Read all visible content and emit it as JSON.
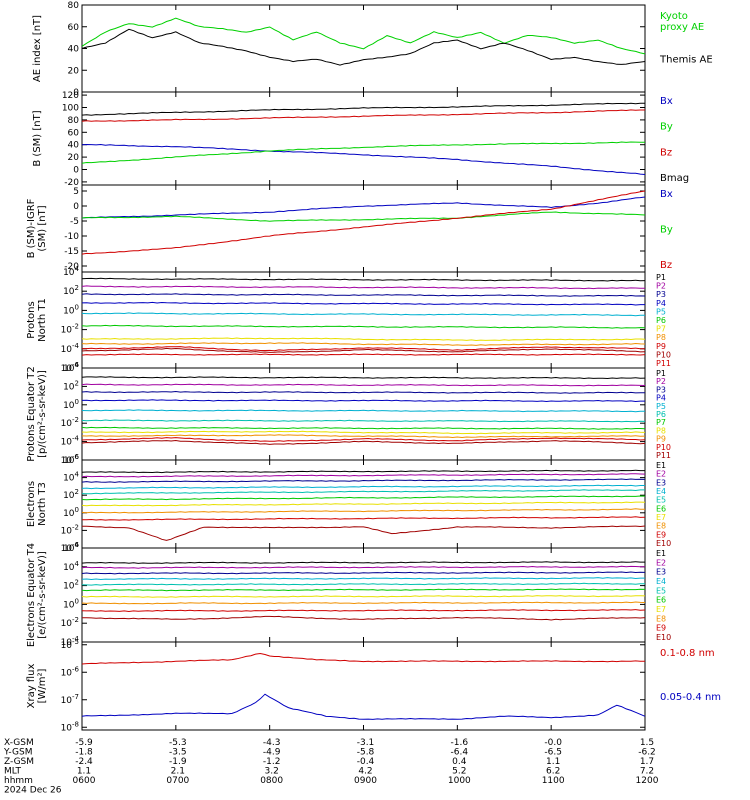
{
  "colors": {
    "axis": "#000000",
    "black": "#000000",
    "green": "#00d000",
    "blue": "#0000c0",
    "red": "#d00000",
    "purple": "#a000a0",
    "navy": "#000090",
    "cyan": "#00b0d0",
    "teal": "#00c0b0",
    "lime": "#00c800",
    "yellow": "#e8e000",
    "orange": "#f09000",
    "darkred": "#a00000"
  },
  "chart_data": [
    {
      "id": "ae",
      "type": "line",
      "ylabel": "AE index [nT]",
      "yticks": [
        "80",
        "60",
        "40",
        "20",
        "0"
      ],
      "ylim": [
        0,
        80
      ],
      "series": [
        {
          "name": "Kyoto proxy AE",
          "color": "green",
          "legend_lines": [
            "Kyoto",
            "proxy AE"
          ],
          "x": [
            6.0,
            6.25,
            6.5,
            6.75,
            7.0,
            7.25,
            7.5,
            7.75,
            8.0,
            8.25,
            8.5,
            8.75,
            9.0,
            9.25,
            9.5,
            9.75,
            10.0,
            10.25,
            10.5,
            10.75,
            11.0,
            11.25,
            11.5,
            11.75,
            12.0
          ],
          "y": [
            42,
            55,
            63,
            60,
            68,
            60,
            58,
            55,
            60,
            48,
            55,
            45,
            40,
            52,
            45,
            55,
            50,
            55,
            45,
            52,
            50,
            45,
            48,
            40,
            35
          ]
        },
        {
          "name": "Themis AE",
          "color": "black",
          "legend_lines": [
            "Themis AE"
          ],
          "x": [
            6.0,
            6.25,
            6.5,
            6.75,
            7.0,
            7.25,
            7.5,
            7.75,
            8.0,
            8.25,
            8.5,
            8.75,
            9.0,
            9.25,
            9.5,
            9.75,
            10.0,
            10.25,
            10.5,
            10.75,
            11.0,
            11.25,
            11.5,
            11.75,
            12.0
          ],
          "y": [
            40,
            45,
            58,
            50,
            55,
            45,
            42,
            38,
            32,
            28,
            30,
            25,
            30,
            32,
            35,
            45,
            48,
            40,
            45,
            38,
            30,
            32,
            28,
            25,
            28
          ]
        }
      ]
    },
    {
      "id": "bsm",
      "type": "line",
      "ylabel": "B (SM) [nT]",
      "yticks": [
        "120",
        "100",
        "80",
        "60",
        "40",
        "20",
        "0",
        "-20"
      ],
      "ylim": [
        -25,
        125
      ],
      "series": [
        {
          "name": "Bx",
          "color": "blue",
          "x": [
            6,
            7,
            8,
            9,
            10,
            11,
            12
          ],
          "y": [
            40,
            37,
            30,
            24,
            16,
            5,
            -8
          ]
        },
        {
          "name": "By",
          "color": "green",
          "x": [
            6,
            7,
            8,
            9,
            10,
            11,
            12
          ],
          "y": [
            10,
            20,
            30,
            36,
            40,
            42,
            44
          ]
        },
        {
          "name": "Bz",
          "color": "red",
          "x": [
            6,
            7,
            8,
            9,
            10,
            11,
            12
          ],
          "y": [
            78,
            80,
            83,
            86,
            89,
            92,
            96
          ]
        },
        {
          "name": "Bmag",
          "color": "black",
          "x": [
            6,
            7,
            8,
            9,
            10,
            11,
            12
          ],
          "y": [
            88,
            92,
            96,
            99,
            101,
            104,
            107
          ]
        }
      ]
    },
    {
      "id": "bigrf",
      "type": "line",
      "ylabel": "B (SM)-IGRF (SM) [nT]",
      "yticks": [
        "5",
        "0",
        "-5",
        "-10",
        "-15",
        "-20"
      ],
      "ylim": [
        -22,
        7
      ],
      "series": [
        {
          "name": "Bx",
          "color": "blue",
          "x": [
            6,
            7,
            8,
            9,
            10,
            11,
            11.5,
            12
          ],
          "y": [
            -4,
            -3,
            -2,
            0,
            1,
            -0.5,
            1,
            3
          ]
        },
        {
          "name": "By",
          "color": "green",
          "x": [
            6,
            7,
            8,
            9,
            10,
            11,
            12
          ],
          "y": [
            -4,
            -3.5,
            -5,
            -4.5,
            -4,
            -2,
            -3
          ]
        },
        {
          "name": "Bz",
          "color": "red",
          "x": [
            6,
            7,
            8,
            9,
            10,
            11,
            11.5,
            12
          ],
          "y": [
            -16,
            -14,
            -10,
            -7,
            -4,
            -1,
            2,
            5
          ]
        }
      ]
    },
    {
      "id": "protons-north",
      "type": "line",
      "ylabel": "Protons North T1",
      "yticks": [
        "10^4",
        "10^2",
        "10^0",
        "10^-2",
        "10^-4",
        "10^-6"
      ],
      "ylim": [
        -6,
        4
      ],
      "series": [
        {
          "name": "P1",
          "color": "black",
          "x": [
            6,
            12
          ],
          "y": [
            3.3,
            3.1
          ]
        },
        {
          "name": "P2",
          "color": "purple",
          "x": [
            6,
            12
          ],
          "y": [
            2.5,
            2.3
          ]
        },
        {
          "name": "P3",
          "color": "navy",
          "x": [
            6,
            12
          ],
          "y": [
            1.7,
            1.5
          ]
        },
        {
          "name": "P4",
          "color": "blue",
          "x": [
            6,
            12
          ],
          "y": [
            0.8,
            0.6
          ]
        },
        {
          "name": "P5",
          "color": "cyan",
          "x": [
            6,
            12
          ],
          "y": [
            -0.3,
            -0.5
          ]
        },
        {
          "name": "P6",
          "color": "lime",
          "x": [
            6,
            12
          ],
          "y": [
            -1.6,
            -1.8
          ]
        },
        {
          "name": "P7",
          "color": "yellow",
          "x": [
            6,
            8,
            10,
            12
          ],
          "y": [
            -3.0,
            -2.9,
            -3.1,
            -3.0
          ]
        },
        {
          "name": "P8",
          "color": "orange",
          "x": [
            6,
            8,
            10,
            12
          ],
          "y": [
            -3.5,
            -3.4,
            -3.6,
            -3.5
          ]
        },
        {
          "name": "P9",
          "color": "red",
          "x": [
            6,
            7,
            8,
            9,
            10,
            11,
            12
          ],
          "y": [
            -4.0,
            -3.8,
            -4.2,
            -3.9,
            -4.1,
            -3.8,
            -4.0
          ]
        },
        {
          "name": "P10",
          "color": "darkred",
          "x": [
            6,
            7,
            8,
            9,
            10,
            11,
            12
          ],
          "y": [
            -4.2,
            -4.0,
            -4.4,
            -4.1,
            -4.3,
            -4.0,
            -4.3
          ]
        },
        {
          "name": "P11",
          "color": "red",
          "x": [
            6,
            12
          ],
          "y": [
            -4.6,
            -4.6
          ]
        }
      ]
    },
    {
      "id": "protons-equator",
      "type": "line",
      "ylabel": "Protons Equator T2 [p/(cm^2-s-sr-keV)]",
      "yticks": [
        "10^4",
        "10^2",
        "10^0",
        "10^-2",
        "10^-4",
        "10^-6"
      ],
      "ylim": [
        -6,
        4
      ],
      "series": [
        {
          "name": "P1",
          "color": "black",
          "x": [
            6,
            12
          ],
          "y": [
            3.0,
            2.9
          ]
        },
        {
          "name": "P2",
          "color": "purple",
          "x": [
            6,
            12
          ],
          "y": [
            2.2,
            2.1
          ]
        },
        {
          "name": "P3",
          "color": "navy",
          "x": [
            6,
            12
          ],
          "y": [
            1.4,
            1.3
          ]
        },
        {
          "name": "P4",
          "color": "blue",
          "x": [
            6,
            12
          ],
          "y": [
            0.5,
            0.4
          ]
        },
        {
          "name": "P5",
          "color": "cyan",
          "x": [
            6,
            12
          ],
          "y": [
            -0.6,
            -0.7
          ]
        },
        {
          "name": "P6",
          "color": "teal",
          "x": [
            6,
            12
          ],
          "y": [
            -1.7,
            -1.8
          ]
        },
        {
          "name": "P7",
          "color": "lime",
          "x": [
            6,
            12
          ],
          "y": [
            -2.5,
            -2.6
          ]
        },
        {
          "name": "P8",
          "color": "yellow",
          "x": [
            6,
            8,
            10,
            12
          ],
          "y": [
            -3.0,
            -2.9,
            -3.1,
            -3.0
          ]
        },
        {
          "name": "P9",
          "color": "orange",
          "x": [
            6,
            8,
            10,
            12
          ],
          "y": [
            -3.4,
            -3.3,
            -3.5,
            -3.4
          ]
        },
        {
          "name": "P10",
          "color": "red",
          "x": [
            6,
            7,
            8,
            9,
            10,
            11,
            12
          ],
          "y": [
            -3.8,
            -3.6,
            -4.0,
            -3.7,
            -3.9,
            -3.6,
            -3.8
          ]
        },
        {
          "name": "P11",
          "color": "darkred",
          "x": [
            6,
            7,
            8,
            9,
            10,
            11,
            12
          ],
          "y": [
            -4.1,
            -3.9,
            -4.3,
            -4.0,
            -4.2,
            -3.9,
            -4.2
          ]
        }
      ]
    },
    {
      "id": "electrons-north",
      "type": "line",
      "ylabel": "Electrons North T3",
      "yticks": [
        "10^6",
        "10^4",
        "10^2",
        "10^0",
        "10^-2",
        "10^-4"
      ],
      "ylim": [
        -4,
        6
      ],
      "series": [
        {
          "name": "E1",
          "color": "black",
          "x": [
            6,
            12
          ],
          "y": [
            4.6,
            4.8
          ]
        },
        {
          "name": "E2",
          "color": "purple",
          "x": [
            6,
            12
          ],
          "y": [
            4.1,
            4.4
          ]
        },
        {
          "name": "E3",
          "color": "navy",
          "x": [
            6,
            12
          ],
          "y": [
            3.5,
            3.8
          ]
        },
        {
          "name": "E4",
          "color": "cyan",
          "x": [
            6,
            12
          ],
          "y": [
            2.8,
            3.1
          ]
        },
        {
          "name": "E5",
          "color": "teal",
          "x": [
            6,
            12
          ],
          "y": [
            2.2,
            2.6
          ]
        },
        {
          "name": "E6",
          "color": "lime",
          "x": [
            6,
            12
          ],
          "y": [
            1.5,
            1.9
          ]
        },
        {
          "name": "E7",
          "color": "yellow",
          "x": [
            6,
            12
          ],
          "y": [
            0.8,
            1.2
          ]
        },
        {
          "name": "E8",
          "color": "orange",
          "x": [
            6,
            12
          ],
          "y": [
            0.0,
            0.4
          ]
        },
        {
          "name": "E9",
          "color": "red",
          "x": [
            6,
            12
          ],
          "y": [
            -0.8,
            -0.5
          ]
        },
        {
          "name": "E10",
          "color": "darkred",
          "x": [
            6,
            6.5,
            6.9,
            7.3,
            8,
            9,
            9.3,
            10,
            11,
            12
          ],
          "y": [
            -1.5,
            -1.7,
            -3.2,
            -1.6,
            -1.7,
            -1.6,
            -2.4,
            -1.6,
            -1.7,
            -1.5
          ]
        }
      ]
    },
    {
      "id": "electrons-equator",
      "type": "line",
      "ylabel": "Electrons Equator T4 [e/(cm^2-s-sr-keV)]",
      "yticks": [
        "10^6",
        "10^4",
        "10^2",
        "10^0",
        "10^-2",
        "10^-4"
      ],
      "ylim": [
        -4,
        6
      ],
      "series": [
        {
          "name": "E1",
          "color": "black",
          "x": [
            6,
            12
          ],
          "y": [
            4.4,
            4.5
          ]
        },
        {
          "name": "E2",
          "color": "purple",
          "x": [
            6,
            12
          ],
          "y": [
            3.9,
            4.0
          ]
        },
        {
          "name": "E3",
          "color": "navy",
          "x": [
            6,
            12
          ],
          "y": [
            3.3,
            3.4
          ]
        },
        {
          "name": "E4",
          "color": "cyan",
          "x": [
            6,
            12
          ],
          "y": [
            2.7,
            2.8
          ]
        },
        {
          "name": "E5",
          "color": "teal",
          "x": [
            6,
            12
          ],
          "y": [
            2.1,
            2.2
          ]
        },
        {
          "name": "E6",
          "color": "lime",
          "x": [
            6,
            12
          ],
          "y": [
            1.5,
            1.6
          ]
        },
        {
          "name": "E7",
          "color": "yellow",
          "x": [
            6,
            12
          ],
          "y": [
            0.8,
            0.9
          ]
        },
        {
          "name": "E8",
          "color": "orange",
          "x": [
            6,
            12
          ],
          "y": [
            0.1,
            0.2
          ]
        },
        {
          "name": "E9",
          "color": "red",
          "x": [
            6,
            12
          ],
          "y": [
            -0.7,
            -0.6
          ]
        },
        {
          "name": "E10",
          "color": "darkred",
          "x": [
            6,
            7,
            8,
            9,
            10,
            11,
            12
          ],
          "y": [
            -1.4,
            -1.6,
            -1.3,
            -1.6,
            -1.4,
            -1.6,
            -1.4
          ]
        }
      ]
    },
    {
      "id": "xray",
      "type": "line",
      "ylabel": "Xray flux [W/m^2]",
      "yticks": [
        "10^-5",
        "10^-6",
        "10^-7",
        "10^-8"
      ],
      "ylim": [
        -8.1,
        -4.9
      ],
      "series": [
        {
          "name": "0.1-0.8 nm",
          "color": "red",
          "x": [
            6,
            7,
            7.6,
            7.9,
            8.0,
            8.5,
            9,
            10,
            11,
            12
          ],
          "y": [
            -5.7,
            -5.6,
            -5.55,
            -5.3,
            -5.4,
            -5.55,
            -5.6,
            -5.6,
            -5.6,
            -5.6
          ]
        },
        {
          "name": "0.05-0.4 nm",
          "color": "blue",
          "x": [
            6,
            6.5,
            7,
            7.6,
            7.85,
            7.95,
            8.2,
            8.6,
            9,
            10,
            10.5,
            11,
            11.5,
            11.7,
            12
          ],
          "y": [
            -7.6,
            -7.55,
            -7.5,
            -7.5,
            -7.1,
            -6.8,
            -7.3,
            -7.6,
            -7.7,
            -7.7,
            -7.6,
            -7.65,
            -7.55,
            -7.2,
            -7.6
          ]
        }
      ]
    }
  ],
  "footer": {
    "row_labels": [
      "X-GSM",
      "Y-GSM",
      "Z-GSM",
      "MLT",
      "hhmm",
      "2024 Dec 26"
    ],
    "columns": [
      {
        "x": 6.0,
        "values": [
          "-5.9",
          "-1.8",
          "-2.4",
          "1.1",
          "0600"
        ]
      },
      {
        "x": 7.0,
        "values": [
          "-5.3",
          "-3.5",
          "-1.9",
          "2.1",
          "0700"
        ]
      },
      {
        "x": 8.0,
        "values": [
          "-4.3",
          "-4.9",
          "-1.2",
          "3.2",
          "0800"
        ]
      },
      {
        "x": 9.0,
        "values": [
          "-3.1",
          "-5.8",
          "-0.4",
          "4.2",
          "0900"
        ]
      },
      {
        "x": 10.0,
        "values": [
          "-1.6",
          "-6.4",
          "0.4",
          "5.2",
          "1000"
        ]
      },
      {
        "x": 11.0,
        "values": [
          "-0.0",
          "-6.5",
          "1.1",
          "6.2",
          "1100"
        ]
      },
      {
        "x": 12.0,
        "values": [
          "1.5",
          "-6.2",
          "1.7",
          "7.2",
          "1200"
        ]
      }
    ]
  }
}
